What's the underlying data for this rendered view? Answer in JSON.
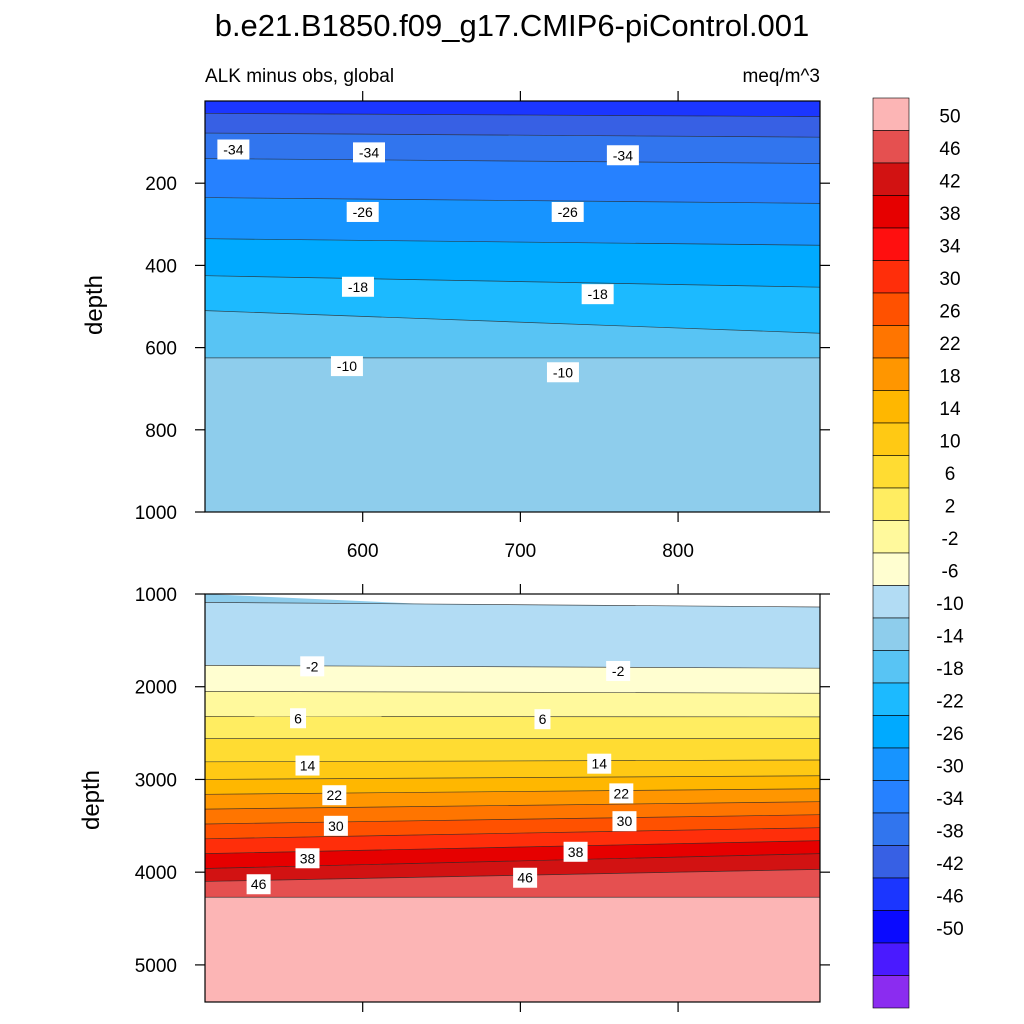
{
  "chart_data": {
    "type": "contour",
    "title": "b.e21.B1850.f09_g17.CMIP6-piControl.001",
    "subtitle_left": "ALK minus obs, global",
    "subtitle_right": "meq/m^3",
    "x_axis": {
      "range": [
        500,
        890
      ],
      "tick_labels": [
        "600",
        "700",
        "800"
      ],
      "ticks": [
        600,
        700,
        800
      ]
    },
    "panels": [
      {
        "name": "upper",
        "ylabel": "depth",
        "ylim": [
          0,
          1000
        ],
        "y_ticks": [
          200,
          400,
          600,
          800,
          1000
        ],
        "y_tick_labels": [
          "200",
          "400",
          "600",
          "800",
          "1000"
        ],
        "contour_labels": [
          {
            "text": "-34",
            "x": 518,
            "y": 118
          },
          {
            "text": "-34",
            "x": 604,
            "y": 125
          },
          {
            "text": "-34",
            "x": 765,
            "y": 132
          },
          {
            "text": "-26",
            "x": 600,
            "y": 270
          },
          {
            "text": "-26",
            "x": 730,
            "y": 270
          },
          {
            "text": "-18",
            "x": 597,
            "y": 452
          },
          {
            "text": "-18",
            "x": 749,
            "y": 470
          },
          {
            "text": "-10",
            "x": 590,
            "y": 645
          },
          {
            "text": "-10",
            "x": 727,
            "y": 660
          }
        ]
      },
      {
        "name": "lower",
        "ylabel": "depth",
        "ylim": [
          1000,
          5400
        ],
        "y_ticks": [
          1000,
          2000,
          3000,
          4000,
          5000
        ],
        "y_tick_labels": [
          "1000",
          "2000",
          "3000",
          "4000",
          "5000"
        ],
        "contour_labels": [
          {
            "text": "-2",
            "x": 568,
            "y": 1780
          },
          {
            "text": "-2",
            "x": 762,
            "y": 1830
          },
          {
            "text": "6",
            "x": 559,
            "y": 2340
          },
          {
            "text": "6",
            "x": 714,
            "y": 2350
          },
          {
            "text": "14",
            "x": 565,
            "y": 2850
          },
          {
            "text": "14",
            "x": 750,
            "y": 2830
          },
          {
            "text": "22",
            "x": 582,
            "y": 3170
          },
          {
            "text": "22",
            "x": 764,
            "y": 3150
          },
          {
            "text": "30",
            "x": 583,
            "y": 3500
          },
          {
            "text": "30",
            "x": 766,
            "y": 3450
          },
          {
            "text": "38",
            "x": 565,
            "y": 3850
          },
          {
            "text": "38",
            "x": 735,
            "y": 3780
          },
          {
            "text": "46",
            "x": 534,
            "y": 4130
          },
          {
            "text": "46",
            "x": 703,
            "y": 4060
          }
        ]
      }
    ],
    "colorbar": {
      "labels": [
        "50",
        "46",
        "42",
        "38",
        "34",
        "30",
        "26",
        "22",
        "18",
        "14",
        "10",
        "6",
        "2",
        "-2",
        "-6",
        "-10",
        "-14",
        "-18",
        "-22",
        "-26",
        "-30",
        "-34",
        "-38",
        "-42",
        "-46",
        "-50"
      ],
      "colors_top_to_bottom": [
        "#fcb5b5",
        "#e55050",
        "#d21212",
        "#e60000",
        "#ff0f0f",
        "#ff2e0a",
        "#ff5100",
        "#ff7500",
        "#ff9600",
        "#ffb700",
        "#ffc914",
        "#ffdc32",
        "#ffed61",
        "#fff99c",
        "#fffed0",
        "#b2dcf4",
        "#8ecdec",
        "#58c4f4",
        "#1cbaff",
        "#00aaff",
        "#1794ff",
        "#2681ff",
        "#3175ee",
        "#3760e4",
        "#1b36ff",
        "#0a0aff",
        "#4a1aff",
        "#8b2cf0"
      ]
    },
    "profiles_top_to_bottom": {
      "upper_levels": [
        -46,
        -42,
        -38,
        -34,
        -30,
        -26,
        -22,
        -18,
        -14,
        -10
      ],
      "lower_levels": [
        -10,
        -6,
        -2,
        2,
        6,
        10,
        14,
        18,
        22,
        26,
        30,
        34,
        38,
        42,
        46,
        50
      ]
    }
  }
}
